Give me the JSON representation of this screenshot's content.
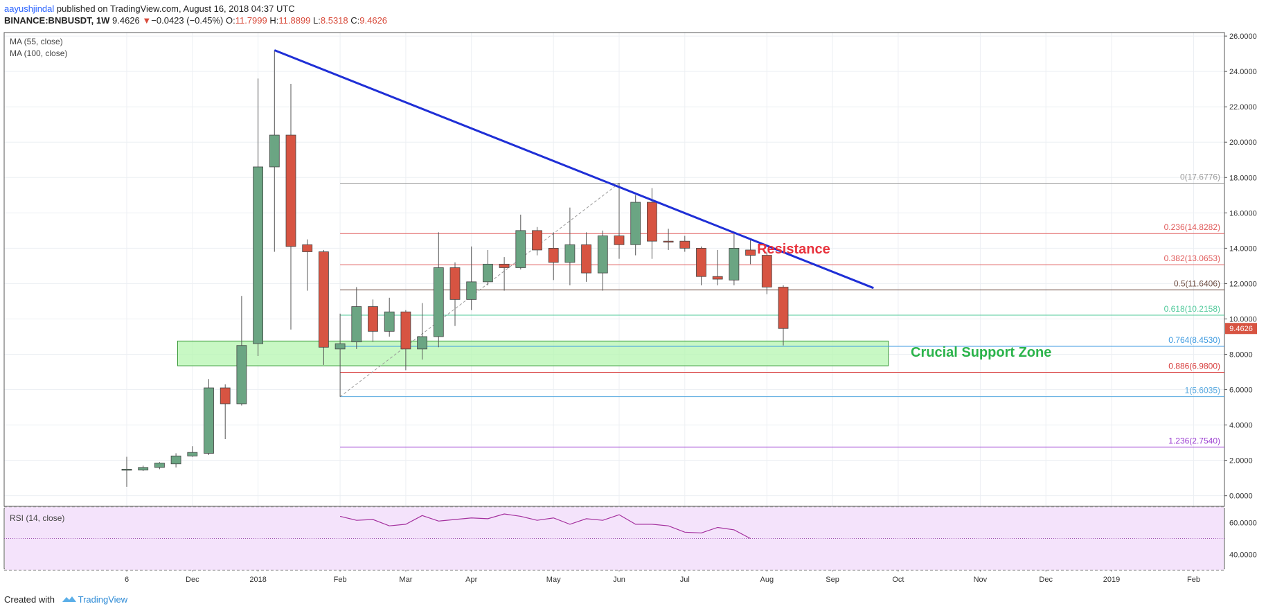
{
  "header": {
    "author": "aayushjindal",
    "published": "published on TradingView.com, August 16, 2018 04:37 UTC",
    "symbol": "BINANCE:BNBUSDT, 1W",
    "last": "9.4626",
    "change": "−0.0423 (−0.45%)",
    "o_label": "O:",
    "o": "11.7999",
    "h_label": "H:",
    "h": "11.8899",
    "l_label": "L:",
    "l": "8.5318",
    "c_label": "C:",
    "c": "9.4626"
  },
  "footer": {
    "created": "Created with",
    "brand": "TradingView"
  },
  "colors": {
    "up": "#6ba583",
    "down": "#d75442",
    "trend": "#1f2fd6",
    "support_fill": "#b6f5b0",
    "support_text": "#2ab34a",
    "resistance_text": "#e8323c",
    "rsi_line": "#a4309e",
    "rsi_band": "#f4e3fb",
    "grid": "#eceff3",
    "axis": "#555555"
  },
  "chart_data": {
    "type": "candlestick",
    "symbol": "BINANCE:BNBUSDT",
    "interval": "1W",
    "ylim": [
      -0.6,
      26.2
    ],
    "y_ticks": [
      "0.0000",
      "2.0000",
      "4.0000",
      "6.0000",
      "8.0000",
      "10.0000",
      "12.0000",
      "14.0000",
      "16.0000",
      "18.0000",
      "20.0000",
      "22.0000",
      "24.0000",
      "26.0000"
    ],
    "y_tick_values": [
      0,
      2,
      4,
      6,
      8,
      10,
      12,
      14,
      16,
      18,
      20,
      22,
      24,
      26
    ],
    "x_ticks": [
      {
        "label": "6",
        "i": 0
      },
      {
        "label": "Dec",
        "i": 4
      },
      {
        "label": "2018",
        "i": 8
      },
      {
        "label": "Feb",
        "i": 13
      },
      {
        "label": "Mar",
        "i": 17
      },
      {
        "label": "Apr",
        "i": 21
      },
      {
        "label": "May",
        "i": 26
      },
      {
        "label": "Jun",
        "i": 30
      },
      {
        "label": "Jul",
        "i": 34
      },
      {
        "label": "Aug",
        "i": 39
      },
      {
        "label": "Sep",
        "i": 43
      },
      {
        "label": "Oct",
        "i": 47
      },
      {
        "label": "Nov",
        "i": 52
      },
      {
        "label": "Dec",
        "i": 56
      },
      {
        "label": "2019",
        "i": 60
      },
      {
        "label": "Feb",
        "i": 65
      }
    ],
    "last_price_label": "9.4626",
    "legend": [
      "MA (55, close)",
      "MA (100, close)"
    ],
    "candles": [
      {
        "o": 1.5,
        "h": 2.2,
        "l": 0.5,
        "c": 1.5
      },
      {
        "o": 1.45,
        "h": 1.7,
        "l": 1.4,
        "c": 1.6
      },
      {
        "o": 1.6,
        "h": 1.9,
        "l": 1.5,
        "c": 1.85
      },
      {
        "o": 1.8,
        "h": 2.4,
        "l": 1.6,
        "c": 2.25
      },
      {
        "o": 2.25,
        "h": 2.8,
        "l": 2.2,
        "c": 2.45
      },
      {
        "o": 2.4,
        "h": 6.6,
        "l": 2.3,
        "c": 6.1
      },
      {
        "o": 6.1,
        "h": 6.3,
        "l": 3.2,
        "c": 5.2
      },
      {
        "o": 5.2,
        "h": 11.3,
        "l": 5.1,
        "c": 8.5
      },
      {
        "o": 8.6,
        "h": 23.6,
        "l": 7.9,
        "c": 18.6
      },
      {
        "o": 18.6,
        "h": 25.2,
        "l": 13.8,
        "c": 20.4
      },
      {
        "o": 20.4,
        "h": 23.3,
        "l": 9.4,
        "c": 14.1
      },
      {
        "o": 14.2,
        "h": 14.5,
        "l": 11.6,
        "c": 13.8
      },
      {
        "o": 13.8,
        "h": 13.9,
        "l": 7.4,
        "c": 8.4
      },
      {
        "o": 8.3,
        "h": 10.3,
        "l": 5.6,
        "c": 8.6
      },
      {
        "o": 8.7,
        "h": 11.8,
        "l": 8.3,
        "c": 10.7
      },
      {
        "o": 10.7,
        "h": 11.1,
        "l": 8.7,
        "c": 9.3
      },
      {
        "o": 9.3,
        "h": 11.2,
        "l": 9.0,
        "c": 10.4
      },
      {
        "o": 10.4,
        "h": 10.5,
        "l": 7.1,
        "c": 8.3
      },
      {
        "o": 8.3,
        "h": 10.9,
        "l": 7.7,
        "c": 9.0
      },
      {
        "o": 9.0,
        "h": 14.9,
        "l": 8.4,
        "c": 12.9
      },
      {
        "o": 12.9,
        "h": 13.2,
        "l": 9.6,
        "c": 11.1
      },
      {
        "o": 11.1,
        "h": 14.1,
        "l": 10.5,
        "c": 12.1
      },
      {
        "o": 12.1,
        "h": 13.9,
        "l": 11.9,
        "c": 13.1
      },
      {
        "o": 13.1,
        "h": 13.5,
        "l": 11.6,
        "c": 12.9
      },
      {
        "o": 12.9,
        "h": 15.9,
        "l": 12.8,
        "c": 15.0
      },
      {
        "o": 15.0,
        "h": 15.2,
        "l": 13.6,
        "c": 13.9
      },
      {
        "o": 14.0,
        "h": 14.9,
        "l": 12.2,
        "c": 13.2
      },
      {
        "o": 13.2,
        "h": 16.3,
        "l": 11.9,
        "c": 14.2
      },
      {
        "o": 14.2,
        "h": 14.9,
        "l": 12.1,
        "c": 12.6
      },
      {
        "o": 12.6,
        "h": 15.0,
        "l": 11.6,
        "c": 14.7
      },
      {
        "o": 14.7,
        "h": 17.7,
        "l": 13.4,
        "c": 14.2
      },
      {
        "o": 14.2,
        "h": 17.0,
        "l": 13.6,
        "c": 16.6
      },
      {
        "o": 16.6,
        "h": 17.4,
        "l": 13.4,
        "c": 14.4
      },
      {
        "o": 14.4,
        "h": 15.1,
        "l": 13.9,
        "c": 14.35
      },
      {
        "o": 14.4,
        "h": 14.7,
        "l": 13.8,
        "c": 14.0
      },
      {
        "o": 14.0,
        "h": 14.1,
        "l": 11.9,
        "c": 12.4
      },
      {
        "o": 12.4,
        "h": 13.9,
        "l": 11.9,
        "c": 12.25
      },
      {
        "o": 12.2,
        "h": 14.8,
        "l": 11.9,
        "c": 14.0
      },
      {
        "o": 13.9,
        "h": 14.5,
        "l": 13.1,
        "c": 13.6
      },
      {
        "o": 13.6,
        "h": 13.8,
        "l": 11.4,
        "c": 11.8
      },
      {
        "o": 11.8,
        "h": 11.9,
        "l": 8.5,
        "c": 9.46
      }
    ],
    "trendline": [
      {
        "i": 9,
        "y": 25.2
      },
      {
        "i": 45.5,
        "y": 11.75
      }
    ],
    "fib_anchor": [
      {
        "i": 13,
        "y": 5.6035
      },
      {
        "i": 30,
        "y": 17.6776
      }
    ],
    "fib_levels": [
      {
        "label": "0(17.6776)",
        "value": 17.6776,
        "color": "#9a9a9a"
      },
      {
        "label": "0.236(14.8282)",
        "value": 14.8282,
        "color": "#e05a5a"
      },
      {
        "label": "0.382(13.0653)",
        "value": 13.0653,
        "color": "#e05a5a"
      },
      {
        "label": "0.5(11.6406)",
        "value": 11.6406,
        "color": "#6d4c41"
      },
      {
        "label": "0.618(10.2158)",
        "value": 10.2158,
        "color": "#4fc99a"
      },
      {
        "label": "0.764(8.4530)",
        "value": 8.453,
        "color": "#3d9ae0"
      },
      {
        "label": "0.886(6.9800)",
        "value": 6.98,
        "color": "#d73b3b"
      },
      {
        "label": "1(5.6035)",
        "value": 5.6035,
        "color": "#58a9e0"
      },
      {
        "label": "1.236(2.7540)",
        "value": 2.754,
        "color": "#9c3fd1"
      }
    ],
    "support_zone": {
      "from_i": 3.1,
      "to_i": 46.4,
      "low": 7.35,
      "high": 8.75,
      "label": "Crucial Support Zone"
    },
    "resistance_label": "Resistance",
    "resistance_label_at": {
      "i": 38.4,
      "y": 13.7
    },
    "rsi": {
      "label": "RSI (14, close)",
      "ylim": [
        31,
        69
      ],
      "ticks": [
        "40.0000",
        "60.0000"
      ],
      "tick_values": [
        40,
        60
      ],
      "band": [
        30,
        70
      ],
      "mid": 50,
      "start_i": 13,
      "values": [
        64,
        61.5,
        62,
        58,
        59,
        64.5,
        61,
        62,
        63,
        62.5,
        65.5,
        64,
        61.5,
        63,
        59,
        62.5,
        61.5,
        65,
        59,
        59,
        58,
        54,
        53.5,
        57,
        55.5,
        50
      ]
    }
  }
}
